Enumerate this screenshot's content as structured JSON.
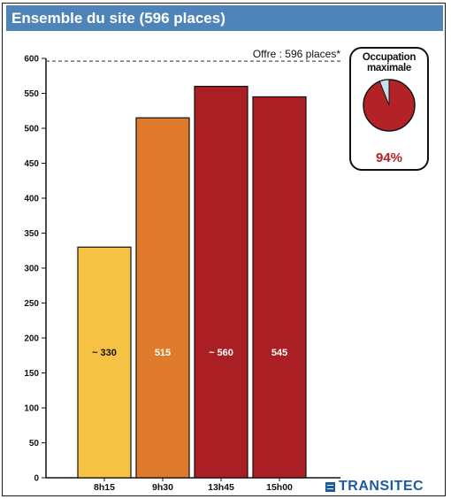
{
  "title": "Ensemble du site (596 places)",
  "offer_label": "Offre : 596 places*",
  "pie": {
    "title_line1": "Occupation",
    "title_line2": "maximale",
    "percent_label": "94%",
    "value": 0.94,
    "fill_color": "#b22227",
    "remainder_color": "#c9dff0"
  },
  "logo": {
    "text": "TRANSITEC",
    "color": "#1d5a9f",
    "icon": "transitec-logo-icon"
  },
  "colors": {
    "title_bar": "#4e84b8",
    "offer_line": "#555555"
  },
  "chart_data": {
    "type": "bar",
    "categories": [
      "8h15",
      "9h30",
      "13h45",
      "15h00"
    ],
    "values": [
      330,
      515,
      560,
      545
    ],
    "bar_labels": [
      "~ 330",
      "515",
      "~ 560",
      "545"
    ],
    "bar_colors": [
      "#f6c244",
      "#df7a2d",
      "#aa1f23",
      "#aa1f23"
    ],
    "bar_label_colors": [
      "#111111",
      "#ffffff",
      "#ffffff",
      "#ffffff"
    ],
    "title": "Ensemble du site (596 places)",
    "reference_line": {
      "value": 596,
      "label": "Offre : 596 places*"
    },
    "yticks": [
      0,
      50,
      100,
      150,
      200,
      250,
      300,
      350,
      400,
      450,
      500,
      550,
      600
    ],
    "ylim": [
      0,
      600
    ],
    "xlabel": "",
    "ylabel": "",
    "grid": false
  }
}
